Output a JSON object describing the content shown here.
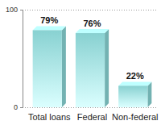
{
  "chart_data": {
    "type": "bar",
    "categories": [
      "Total loans",
      "Federal",
      "Non-federal"
    ],
    "values": [
      79,
      76,
      22
    ],
    "value_labels": [
      "79%",
      "76%",
      "22%"
    ],
    "data_labels": true,
    "color": "#8fdcdc",
    "ylim": [
      0,
      100
    ],
    "yticks": [
      0,
      100
    ],
    "grid": true
  }
}
